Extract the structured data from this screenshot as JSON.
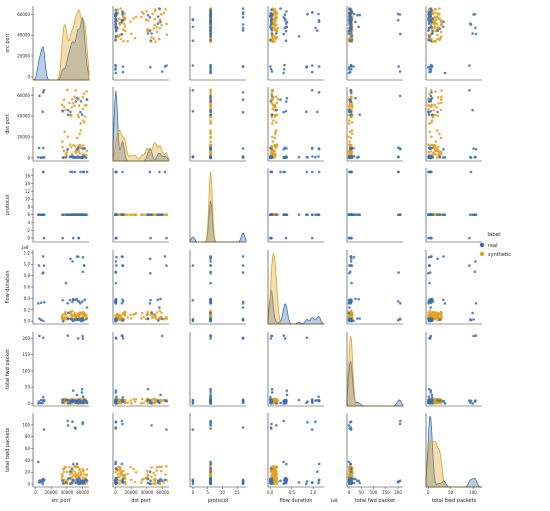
{
  "chart_data": {
    "type": "scatter",
    "subtype": "pairplot",
    "grid": false,
    "legend_placement": "right",
    "legend": {
      "title": "label",
      "entries": [
        {
          "name": "real",
          "color": "#3a6fb5"
        },
        {
          "name": "synthetic",
          "color": "#e0a020"
        }
      ]
    },
    "variables": [
      {
        "name": "src port",
        "range": [
          -3000,
          68000
        ],
        "ticks": [
          0,
          20000,
          40000,
          60000
        ],
        "tick_labels": [
          "0",
          "20000",
          "40000",
          "60000"
        ],
        "offset_text": ""
      },
      {
        "name": "dst port",
        "range": [
          -3000,
          68000
        ],
        "ticks": [
          0,
          20000,
          40000,
          60000
        ],
        "tick_labels": [
          "0",
          "20000",
          "40000",
          "60000"
        ],
        "offset_text": ""
      },
      {
        "name": "protocol",
        "range": [
          -1,
          18
        ],
        "ticks": [
          0,
          2,
          4,
          6,
          8,
          10,
          12,
          14,
          16
        ],
        "tick_labels": [
          "0",
          "2",
          "4",
          "6",
          "8",
          "10",
          "12",
          "14",
          "16"
        ],
        "offset_text": "",
        "x_ticks": [
          0,
          5,
          10,
          15
        ],
        "x_tick_labels": [
          "0",
          "5",
          "10",
          "15"
        ]
      },
      {
        "name": "flow duration",
        "range": [
          -0.05,
          1.25
        ],
        "ticks": [
          0,
          0.2,
          0.4,
          0.6,
          0.8,
          1.0,
          1.2
        ],
        "tick_labels": [
          "0.0",
          "0.2",
          "0.4",
          "0.6",
          "0.8",
          "1.0",
          "1.2"
        ],
        "offset_text": "1e8",
        "x_ticks": [
          0,
          0.5,
          1.0
        ],
        "x_tick_labels": [
          "0.0",
          "0.5",
          "1.0"
        ]
      },
      {
        "name": "total fwd packet",
        "range": [
          -8,
          220
        ],
        "ticks": [
          0,
          50,
          100,
          150,
          200
        ],
        "tick_labels": [
          "0",
          "50",
          "100",
          "150",
          "200"
        ],
        "offset_text": "",
        "x_ticks": [
          0,
          50,
          100,
          150,
          200
        ],
        "x_tick_labels": [
          "0",
          "50",
          "100",
          "150",
          "200"
        ]
      },
      {
        "name": "total bwd packets",
        "range": [
          -5,
          120
        ],
        "ticks": [
          0,
          20,
          40,
          60,
          80,
          100
        ],
        "tick_labels": [
          "0",
          "20",
          "40",
          "60",
          "80",
          "100"
        ],
        "offset_text": "",
        "x_ticks": [
          0,
          50,
          100
        ],
        "x_tick_labels": [
          "0",
          "50",
          "100"
        ]
      }
    ]
  }
}
